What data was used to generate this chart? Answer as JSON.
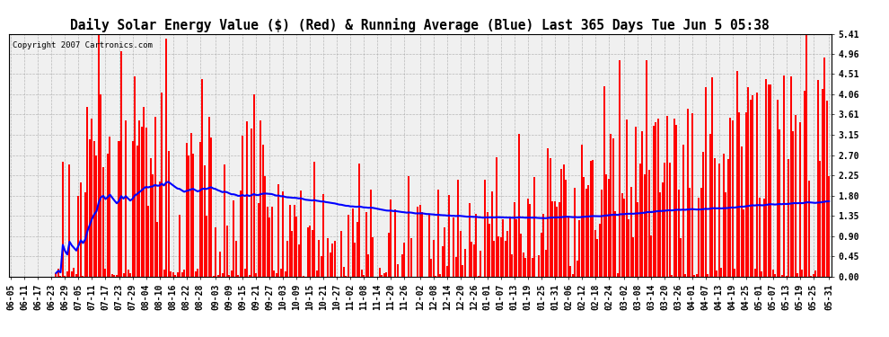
{
  "title": "Daily Solar Energy Value ($) (Red) & Running Average (Blue) Last 365 Days Tue Jun 5 05:38",
  "copyright_text": "Copyright 2007 Cartronics.com",
  "yticks": [
    0.0,
    0.45,
    0.9,
    1.35,
    1.8,
    2.25,
    2.7,
    3.15,
    3.61,
    4.06,
    4.51,
    4.96,
    5.41
  ],
  "bar_color": "#ff0000",
  "avg_color": "#0000ff",
  "bg_color": "#ffffff",
  "plot_bg_color": "#f0f0f0",
  "grid_color": "#aaaaaa",
  "title_fontsize": 10.5,
  "tick_fontsize": 7,
  "copyright_fontsize": 6.5,
  "x_labels": [
    "06-05",
    "06-11",
    "06-17",
    "06-23",
    "06-29",
    "07-05",
    "07-11",
    "07-17",
    "07-23",
    "07-29",
    "08-04",
    "08-10",
    "08-16",
    "08-22",
    "08-28",
    "09-03",
    "09-09",
    "09-15",
    "09-21",
    "09-27",
    "10-03",
    "10-09",
    "10-15",
    "10-21",
    "10-27",
    "11-02",
    "11-08",
    "11-14",
    "11-20",
    "11-26",
    "12-02",
    "12-08",
    "12-14",
    "12-20",
    "12-26",
    "01-01",
    "01-07",
    "01-13",
    "01-19",
    "01-25",
    "01-31",
    "02-06",
    "02-12",
    "02-18",
    "02-24",
    "03-02",
    "03-08",
    "03-14",
    "03-20",
    "03-26",
    "04-01",
    "04-07",
    "04-13",
    "04-19",
    "04-25",
    "05-01",
    "05-07",
    "05-13",
    "05-19",
    "05-25",
    "05-31"
  ],
  "ymax": 5.41,
  "ymin": 0.0
}
